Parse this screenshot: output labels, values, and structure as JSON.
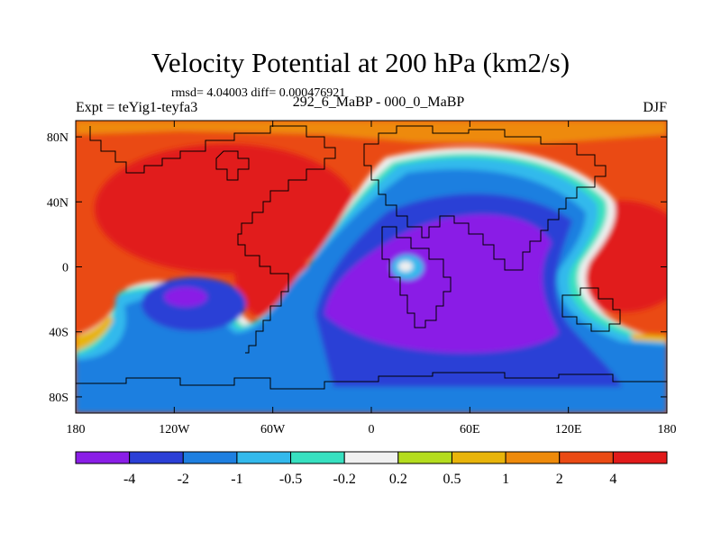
{
  "chart_data": {
    "type": "heatmap",
    "title": "Velocity Potential at 200 hPa (km2/s)",
    "subtitle": "rmsd= 4.04003 diff= 0.000476921",
    "left_label": "Expt = teYig1-teyfa3",
    "center_label": "292_6_MaBP - 000_0_MaBP",
    "right_label": "DJF",
    "x_ticks": [
      "180",
      "120W",
      "60W",
      "0",
      "60E",
      "120E",
      "180"
    ],
    "x_tick_values": [
      -180,
      -120,
      -60,
      0,
      60,
      120,
      180
    ],
    "y_ticks": [
      "80N",
      "40N",
      "0",
      "40S",
      "80S"
    ],
    "y_tick_values": [
      80,
      40,
      0,
      -40,
      -80
    ],
    "xlim": [
      -180,
      180
    ],
    "ylim": [
      -90,
      90
    ],
    "contour_levels": [
      -4,
      -2,
      -1,
      -0.5,
      -0.2,
      0.2,
      0.5,
      1,
      2,
      4
    ],
    "colorbar_labels": [
      "-4",
      "-2",
      "-1",
      "-0.5",
      "-0.2",
      "0.2",
      "0.5",
      "1",
      "2",
      "4"
    ],
    "colors": [
      "#8a1ee6",
      "#2b3fd6",
      "#1e7fe0",
      "#33b9ec",
      "#37e0c0",
      "#f0f0f0",
      "#b4dc1e",
      "#e8b40a",
      "#ee8a0a",
      "#ea4a14",
      "#e11a1a"
    ],
    "field_features": [
      {
        "lon": 60,
        "lat": -10,
        "value": -4.8,
        "description": "broad convergence minimum over Indian Ocean / Africa"
      },
      {
        "lon": -132,
        "lat": -23,
        "value": -4.3,
        "description": "secondary minimum over South Pacific"
      },
      {
        "lon": -120,
        "lat": 50,
        "value": 4.5,
        "description": "divergence maximum over North Pacific"
      },
      {
        "lon": 150,
        "lat": 18,
        "value": 4.4,
        "description": "divergence maximum over West Pacific"
      },
      {
        "lon": 22,
        "lat": 0,
        "value": 0.0,
        "description": "near-zero pocket over central Africa"
      }
    ]
  }
}
